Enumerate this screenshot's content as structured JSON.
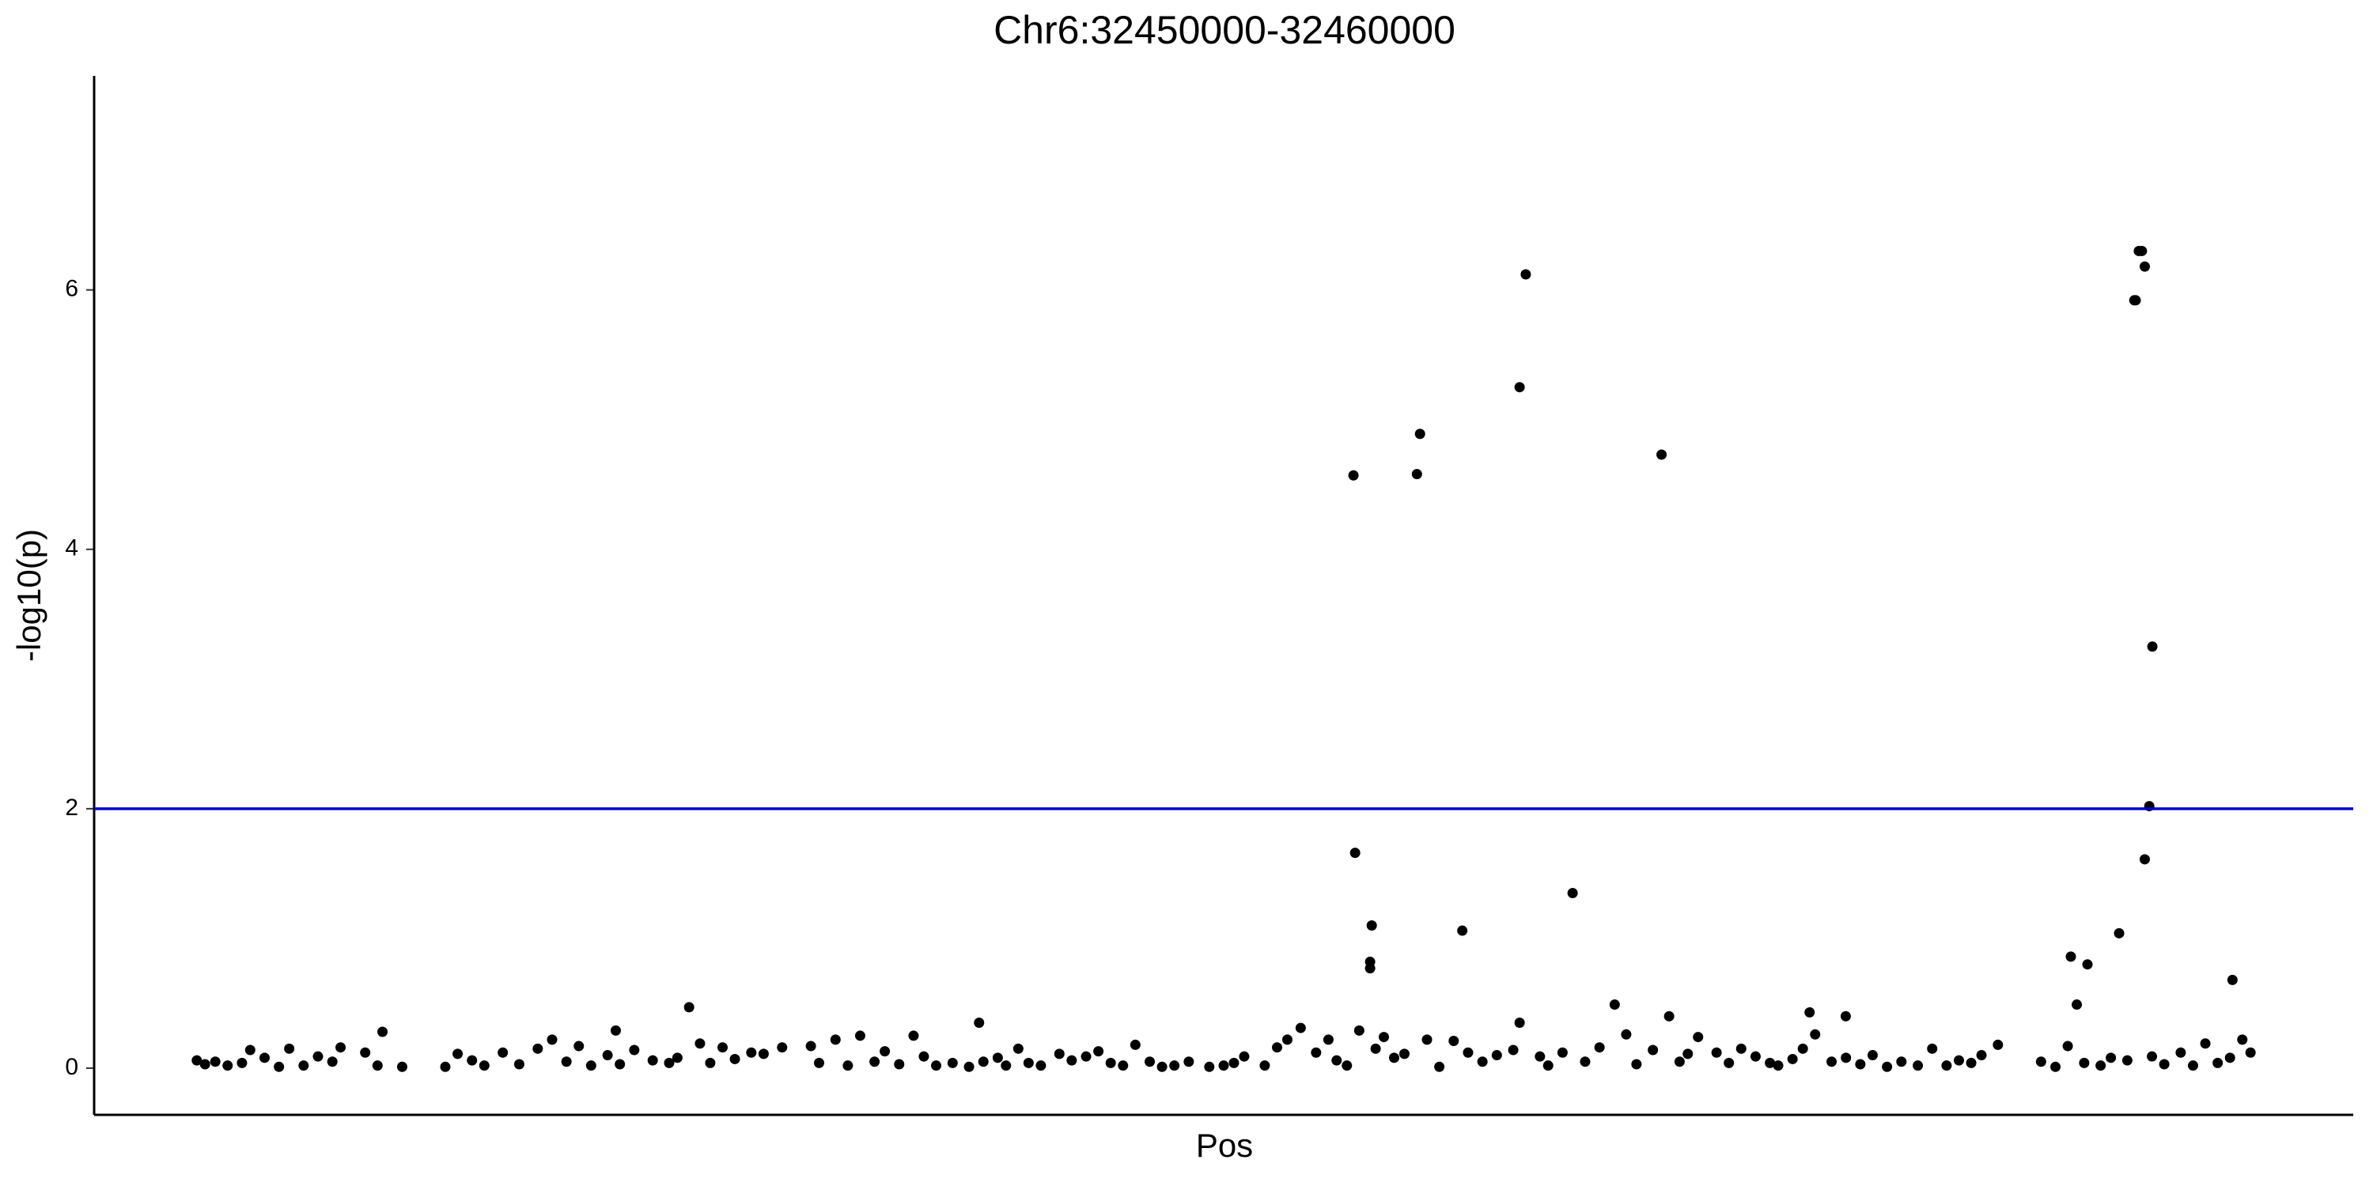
{
  "chart_data": {
    "type": "scatter",
    "title": "Chr6:32450000-32460000",
    "x_label": "Pos",
    "y_label": "-log10(p)",
    "color": "#000000",
    "x": [
      32455632,
      32455956,
      32455941,
      32456441,
      32456471,
      32457132,
      32459471,
      32459456,
      32459485,
      32459441,
      32459434,
      32459522,
      32459507,
      32459485,
      32455640,
      32455721,
      32455713,
      32455713,
      32456162,
      32456699,
      32459360,
      32459125,
      32459206,
      32459154,
      32459912,
      32452397,
      32456904,
      32457169,
      32457853,
      32458029,
      32450904,
      32452040,
      32453809,
      32456441,
      32455375,
      32450000,
      32450040,
      32450090,
      32450150,
      32450220,
      32450260,
      32450330,
      32450400,
      32450450,
      32450520,
      32450590,
      32450660,
      32450700,
      32450820,
      32450880,
      32451000,
      32451210,
      32451270,
      32451340,
      32451400,
      32451490,
      32451570,
      32451660,
      32451730,
      32451800,
      32451860,
      32451920,
      32452000,
      32452060,
      32452130,
      32452220,
      32452300,
      32452340,
      32452450,
      32452500,
      32452560,
      32452620,
      32452700,
      32452760,
      32452850,
      32452990,
      32453030,
      32453110,
      32453170,
      32453230,
      32453300,
      32453350,
      32453420,
      32453490,
      32453540,
      32453600,
      32453680,
      32453760,
      32453830,
      32453900,
      32453940,
      32454000,
      32454050,
      32454110,
      32454200,
      32454260,
      32454330,
      32454390,
      32454450,
      32454510,
      32454570,
      32454640,
      32454700,
      32454760,
      32454830,
      32454930,
      32455000,
      32455050,
      32455100,
      32455200,
      32455260,
      32455310,
      32455450,
      32455510,
      32455550,
      32455600,
      32455660,
      32455740,
      32455780,
      32455830,
      32455880,
      32455990,
      32456050,
      32456120,
      32456190,
      32456260,
      32456330,
      32456410,
      32456540,
      32456580,
      32456650,
      32456760,
      32456830,
      32456960,
      32457010,
      32457090,
      32457220,
      32457260,
      32457310,
      32457400,
      32457460,
      32457520,
      32457590,
      32457660,
      32457700,
      32457770,
      32457820,
      32457880,
      32457960,
      32458030,
      32458100,
      32458160,
      32458230,
      32458300,
      32458380,
      32458450,
      32458520,
      32458580,
      32458640,
      32458690,
      32458770,
      32458980,
      32459050,
      32459110,
      32459190,
      32459270,
      32459320,
      32459400,
      32459520,
      32459580,
      32459660,
      32459720,
      32459780,
      32459840,
      32459900,
      32459960,
      32460000
    ],
    "values": [
      4.57,
      4.89,
      4.58,
      5.25,
      6.12,
      4.73,
      6.3,
      6.3,
      6.18,
      5.92,
      5.92,
      3.25,
      2.02,
      1.61,
      1.66,
      1.1,
      0.82,
      0.77,
      1.06,
      1.35,
      1.04,
      0.86,
      0.8,
      0.49,
      0.68,
      0.47,
      0.49,
      0.4,
      0.43,
      0.4,
      0.28,
      0.29,
      0.35,
      0.35,
      0.31,
      0.06,
      0.03,
      0.05,
      0.02,
      0.04,
      0.14,
      0.08,
      0.01,
      0.15,
      0.02,
      0.09,
      0.05,
      0.16,
      0.12,
      0.02,
      0.01,
      0.01,
      0.11,
      0.06,
      0.02,
      0.12,
      0.03,
      0.15,
      0.22,
      0.05,
      0.17,
      0.02,
      0.1,
      0.03,
      0.14,
      0.06,
      0.04,
      0.08,
      0.19,
      0.04,
      0.16,
      0.07,
      0.12,
      0.11,
      0.16,
      0.17,
      0.04,
      0.22,
      0.02,
      0.25,
      0.05,
      0.13,
      0.03,
      0.25,
      0.09,
      0.02,
      0.04,
      0.01,
      0.05,
      0.08,
      0.02,
      0.15,
      0.04,
      0.02,
      0.11,
      0.06,
      0.09,
      0.13,
      0.04,
      0.02,
      0.18,
      0.05,
      0.01,
      0.02,
      0.05,
      0.01,
      0.02,
      0.04,
      0.09,
      0.02,
      0.16,
      0.22,
      0.12,
      0.22,
      0.06,
      0.02,
      0.29,
      0.15,
      0.24,
      0.08,
      0.11,
      0.22,
      0.01,
      0.21,
      0.12,
      0.05,
      0.1,
      0.14,
      0.09,
      0.02,
      0.12,
      0.05,
      0.16,
      0.26,
      0.03,
      0.14,
      0.05,
      0.11,
      0.24,
      0.12,
      0.04,
      0.15,
      0.09,
      0.04,
      0.02,
      0.07,
      0.15,
      0.26,
      0.05,
      0.08,
      0.03,
      0.1,
      0.01,
      0.05,
      0.02,
      0.15,
      0.02,
      0.06,
      0.04,
      0.1,
      0.18,
      0.05,
      0.01,
      0.17,
      0.04,
      0.02,
      0.08,
      0.06,
      0.09,
      0.03,
      0.12,
      0.02,
      0.19,
      0.04,
      0.08,
      0.22,
      0.12
    ],
    "xlim": [
      32449500,
      32460500
    ],
    "ylim": [
      -0.36,
      7.65
    ],
    "yticks": [
      0,
      2,
      4,
      6
    ],
    "hline": {
      "y": 2,
      "color": "#0000cd"
    },
    "grid": false
  }
}
